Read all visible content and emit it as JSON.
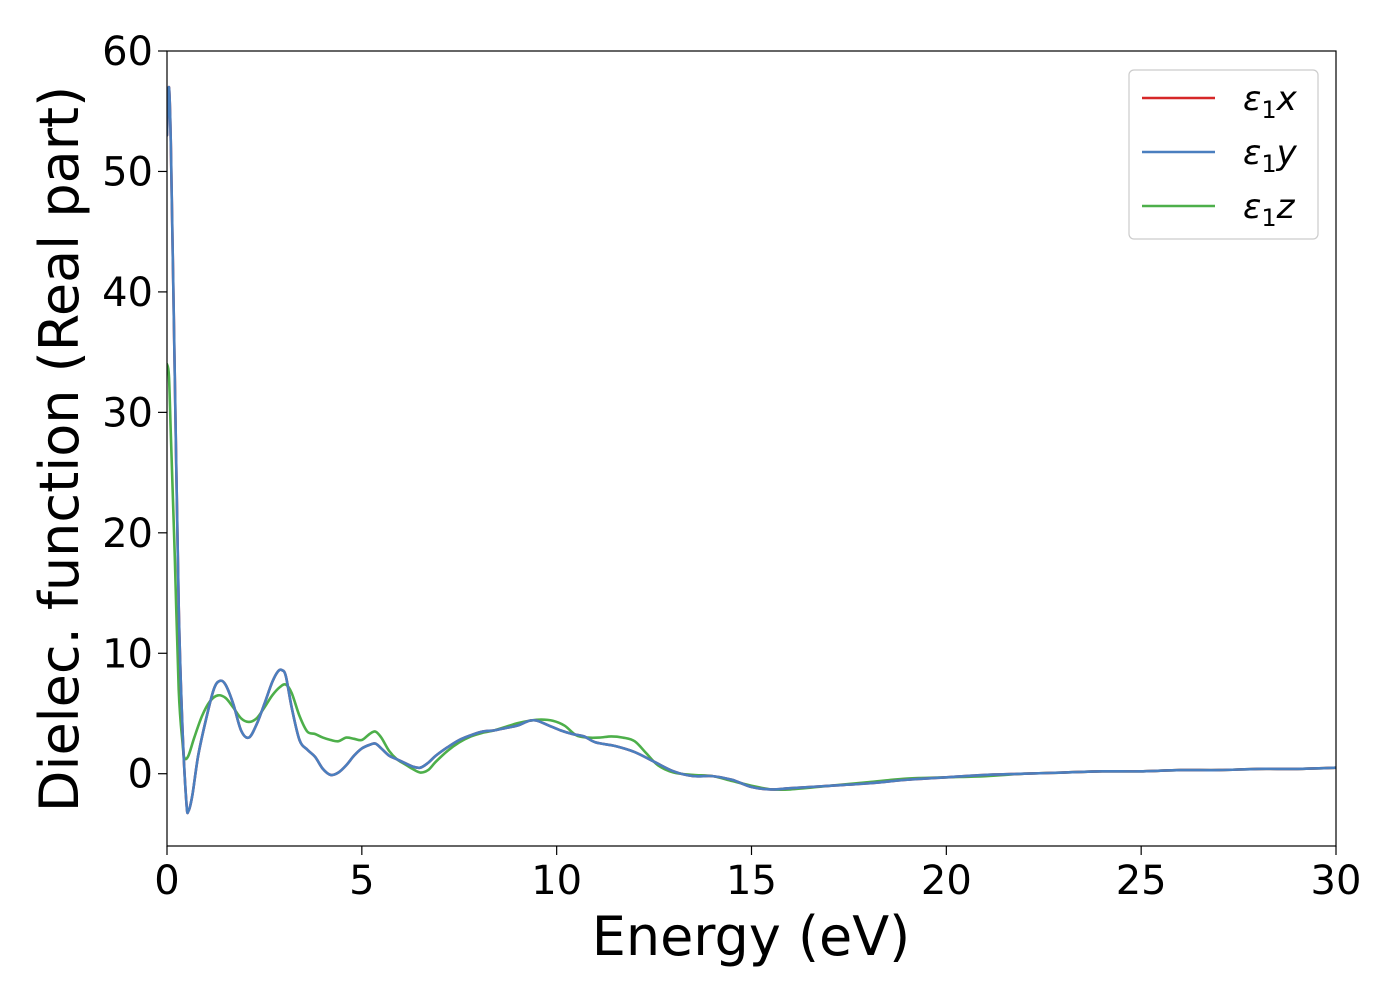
{
  "chart_data": {
    "type": "line",
    "xlabel": "Energy (eV)",
    "ylabel": "Dielec. function (Real part)",
    "xlim": [
      0,
      30
    ],
    "ylim": [
      -6,
      60
    ],
    "xticks": [
      0,
      5,
      10,
      15,
      20,
      25,
      30
    ],
    "yticks": [
      0,
      10,
      20,
      30,
      40,
      50,
      60
    ],
    "grid": false,
    "legend_position": "top-right",
    "series": [
      {
        "name": "ε1x",
        "label_base": "ε",
        "label_sub": "1",
        "label_var": "x",
        "color": "#d62728",
        "x": [
          0,
          0.05,
          0.1,
          0.2,
          0.3,
          0.4,
          0.5,
          0.55,
          0.65,
          0.8,
          1.0,
          1.2,
          1.35,
          1.5,
          1.7,
          1.9,
          2.1,
          2.3,
          2.5,
          2.7,
          2.85,
          2.95,
          3.05,
          3.2,
          3.4,
          3.6,
          3.8,
          4.0,
          4.2,
          4.4,
          4.6,
          4.8,
          5.0,
          5.2,
          5.35,
          5.5,
          5.7,
          5.9,
          6.1,
          6.3,
          6.5,
          6.7,
          6.9,
          7.2,
          7.5,
          7.8,
          8.1,
          8.4,
          8.7,
          9.0,
          9.3,
          9.5,
          9.8,
          10.1,
          10.4,
          10.7,
          11.0,
          11.5,
          12.0,
          12.5,
          13.0,
          13.5,
          14.0,
          14.5,
          15.0,
          15.5,
          16.0,
          17.0,
          18.0,
          19.0,
          20.0,
          21.0,
          22.0,
          23.0,
          24.0,
          25.0,
          26.0,
          27.0,
          28.0,
          29.0,
          30.0
        ],
        "y": [
          53.0,
          57.0,
          52.0,
          33.0,
          14.0,
          3.5,
          -2.5,
          -3.1,
          -1.8,
          1.5,
          4.5,
          7.0,
          7.7,
          7.4,
          5.8,
          3.6,
          3.0,
          4.1,
          5.8,
          7.6,
          8.5,
          8.6,
          8.1,
          5.5,
          2.8,
          2.0,
          1.4,
          0.4,
          -0.1,
          0.1,
          0.7,
          1.5,
          2.1,
          2.4,
          2.5,
          2.1,
          1.5,
          1.2,
          0.9,
          0.6,
          0.5,
          0.9,
          1.5,
          2.2,
          2.8,
          3.2,
          3.5,
          3.6,
          3.8,
          4.0,
          4.4,
          4.4,
          4.0,
          3.6,
          3.3,
          3.1,
          2.6,
          2.3,
          1.8,
          1.0,
          0.2,
          -0.2,
          -0.2,
          -0.5,
          -1.1,
          -1.3,
          -1.2,
          -1.0,
          -0.8,
          -0.5,
          -0.3,
          -0.1,
          0.0,
          0.1,
          0.2,
          0.2,
          0.3,
          0.3,
          0.4,
          0.4,
          0.5
        ]
      },
      {
        "name": "ε1y",
        "label_base": "ε",
        "label_sub": "1",
        "label_var": "y",
        "color": "#4a7fbf",
        "x": [
          0,
          0.05,
          0.1,
          0.2,
          0.3,
          0.4,
          0.5,
          0.55,
          0.65,
          0.8,
          1.0,
          1.2,
          1.35,
          1.5,
          1.7,
          1.9,
          2.1,
          2.3,
          2.5,
          2.7,
          2.85,
          2.95,
          3.05,
          3.2,
          3.4,
          3.6,
          3.8,
          4.0,
          4.2,
          4.4,
          4.6,
          4.8,
          5.0,
          5.2,
          5.35,
          5.5,
          5.7,
          5.9,
          6.1,
          6.3,
          6.5,
          6.7,
          6.9,
          7.2,
          7.5,
          7.8,
          8.1,
          8.4,
          8.7,
          9.0,
          9.3,
          9.5,
          9.8,
          10.1,
          10.4,
          10.7,
          11.0,
          11.5,
          12.0,
          12.5,
          13.0,
          13.5,
          14.0,
          14.5,
          15.0,
          15.5,
          16.0,
          17.0,
          18.0,
          19.0,
          20.0,
          21.0,
          22.0,
          23.0,
          24.0,
          25.0,
          26.0,
          27.0,
          28.0,
          29.0,
          30.0
        ],
        "y": [
          53.0,
          57.0,
          52.0,
          33.0,
          14.0,
          3.5,
          -2.5,
          -3.1,
          -1.8,
          1.5,
          4.5,
          7.0,
          7.7,
          7.4,
          5.8,
          3.6,
          3.0,
          4.1,
          5.8,
          7.6,
          8.5,
          8.6,
          8.1,
          5.5,
          2.8,
          2.0,
          1.4,
          0.4,
          -0.1,
          0.1,
          0.7,
          1.5,
          2.1,
          2.4,
          2.5,
          2.1,
          1.5,
          1.2,
          0.9,
          0.6,
          0.5,
          0.9,
          1.5,
          2.2,
          2.8,
          3.2,
          3.5,
          3.6,
          3.8,
          4.0,
          4.4,
          4.4,
          4.0,
          3.6,
          3.3,
          3.1,
          2.6,
          2.3,
          1.8,
          1.0,
          0.2,
          -0.2,
          -0.2,
          -0.5,
          -1.1,
          -1.3,
          -1.2,
          -1.0,
          -0.8,
          -0.5,
          -0.3,
          -0.1,
          0.0,
          0.1,
          0.2,
          0.2,
          0.3,
          0.3,
          0.4,
          0.4,
          0.5
        ]
      },
      {
        "name": "ε1z",
        "label_base": "ε",
        "label_sub": "1",
        "label_var": "z",
        "color": "#4daf4a",
        "x": [
          0,
          0.05,
          0.1,
          0.2,
          0.3,
          0.4,
          0.45,
          0.55,
          0.7,
          0.9,
          1.1,
          1.3,
          1.5,
          1.7,
          1.9,
          2.1,
          2.3,
          2.5,
          2.7,
          2.9,
          3.05,
          3.2,
          3.4,
          3.6,
          3.8,
          4.0,
          4.2,
          4.4,
          4.6,
          4.8,
          5.0,
          5.2,
          5.35,
          5.5,
          5.7,
          5.9,
          6.1,
          6.3,
          6.5,
          6.7,
          6.9,
          7.2,
          7.5,
          7.8,
          8.1,
          8.4,
          8.7,
          9.0,
          9.3,
          9.6,
          9.9,
          10.2,
          10.5,
          10.8,
          11.1,
          11.4,
          11.7,
          12.0,
          12.3,
          12.6,
          13.0,
          13.5,
          14.0,
          14.5,
          15.0,
          15.5,
          16.0,
          17.0,
          18.0,
          19.0,
          20.0,
          21.0,
          22.0,
          23.0,
          24.0,
          25.0,
          26.0,
          27.0,
          28.0,
          29.0,
          30.0
        ],
        "y": [
          34.0,
          33.0,
          28.0,
          18.0,
          7.0,
          2.5,
          1.3,
          1.5,
          3.0,
          4.8,
          6.0,
          6.5,
          6.3,
          5.5,
          4.6,
          4.3,
          4.6,
          5.5,
          6.5,
          7.2,
          7.4,
          6.7,
          4.8,
          3.5,
          3.3,
          3.0,
          2.8,
          2.7,
          3.0,
          2.9,
          2.8,
          3.3,
          3.5,
          3.0,
          1.9,
          1.2,
          0.8,
          0.4,
          0.1,
          0.3,
          1.0,
          1.9,
          2.6,
          3.1,
          3.4,
          3.6,
          3.9,
          4.2,
          4.4,
          4.5,
          4.4,
          4.0,
          3.2,
          3.0,
          3.0,
          3.1,
          3.0,
          2.7,
          1.7,
          0.7,
          0.1,
          -0.1,
          -0.2,
          -0.6,
          -1.0,
          -1.3,
          -1.3,
          -1.0,
          -0.7,
          -0.4,
          -0.3,
          -0.2,
          0.0,
          0.1,
          0.2,
          0.2,
          0.3,
          0.3,
          0.4,
          0.4,
          0.5
        ]
      }
    ]
  }
}
